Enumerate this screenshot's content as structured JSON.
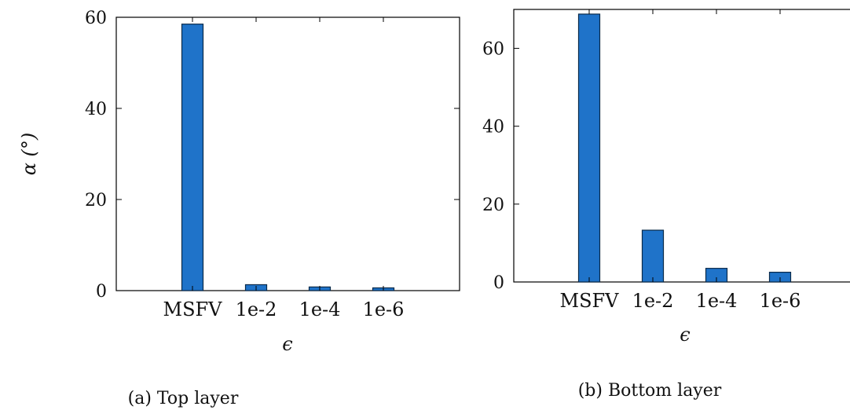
{
  "chart_data": [
    {
      "type": "bar",
      "categories": [
        "MSFV",
        "1e-2",
        "1e-4",
        "1e-6"
      ],
      "values": [
        58.5,
        1.3,
        0.8,
        0.6
      ],
      "ylabel": "α (°)",
      "xlabel": "ϵ",
      "ylim": [
        0,
        60
      ],
      "yticks": [
        0,
        20,
        40,
        60
      ],
      "caption": "(a) Top layer",
      "grid": false,
      "bar_color": "#1f73c9"
    },
    {
      "type": "bar",
      "categories": [
        "MSFV",
        "1e-2",
        "1e-4",
        "1e-6"
      ],
      "values": [
        68.8,
        13.3,
        3.5,
        2.5
      ],
      "ylabel": "",
      "xlabel": "ϵ",
      "ylim": [
        0,
        70
      ],
      "yticks": [
        0,
        20,
        40,
        60
      ],
      "caption": "(b) Bottom layer",
      "grid": false,
      "bar_color": "#1f73c9"
    }
  ]
}
